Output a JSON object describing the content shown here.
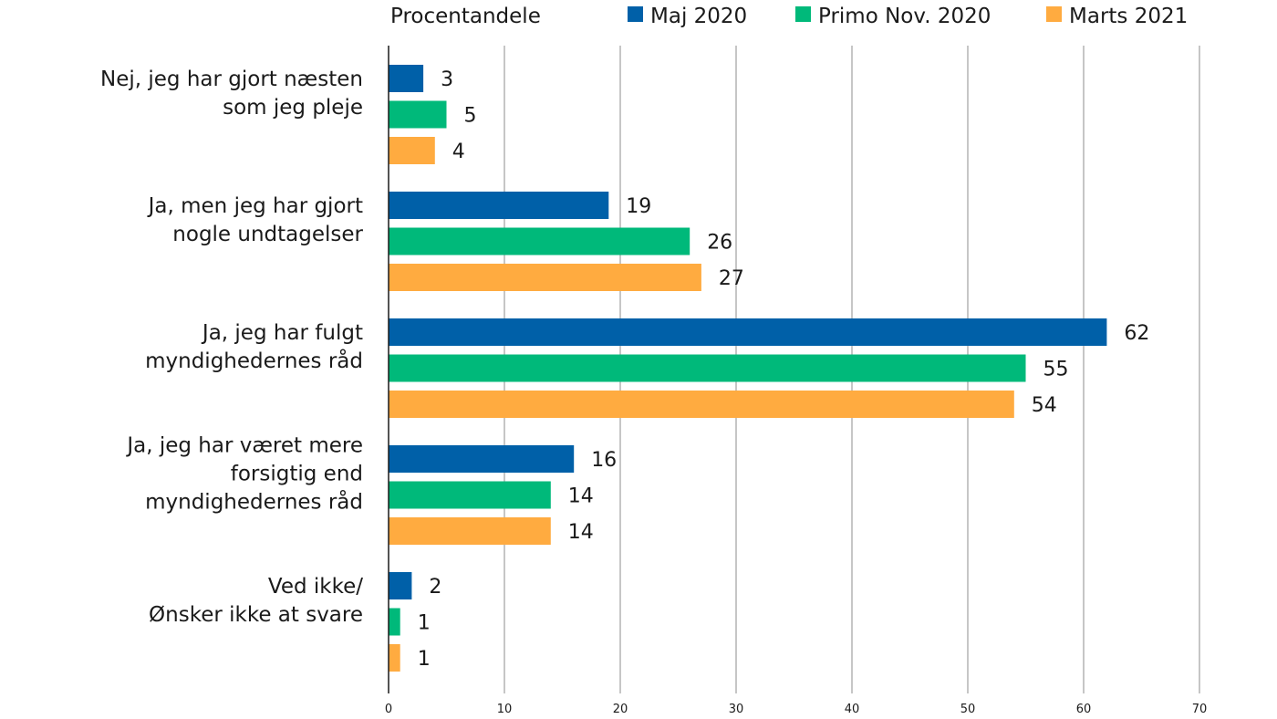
{
  "chart_data": {
    "type": "bar",
    "orientation": "horizontal",
    "title": "Procentandele",
    "legend_position": "top",
    "grid": true,
    "xlim": [
      0,
      70
    ],
    "x_ticks": [
      "0",
      "10",
      "20",
      "30",
      "40",
      "50",
      "60",
      "70"
    ],
    "categories": [
      [
        "Nej, jeg har gjort næsten",
        "som jeg pleje"
      ],
      [
        "Ja, men jeg har gjort",
        "nogle undtagelser"
      ],
      [
        "Ja, jeg har fulgt",
        "myndighedernes råd"
      ],
      [
        "Ja, jeg har været mere",
        "forsigtig end",
        "myndighedernes råd"
      ],
      [
        "Ved ikke/",
        "Ønsker ikke at svare"
      ]
    ],
    "series": [
      {
        "name": "Maj 2020",
        "color": "#0060a8",
        "values": [
          3,
          19,
          62,
          16,
          2
        ]
      },
      {
        "name": "Primo Nov. 2020",
        "color": "#00b97a",
        "values": [
          5,
          26,
          55,
          14,
          1
        ]
      },
      {
        "name": "Marts 2021",
        "color": "#ffab40",
        "values": [
          4,
          27,
          54,
          14,
          1
        ]
      }
    ]
  }
}
